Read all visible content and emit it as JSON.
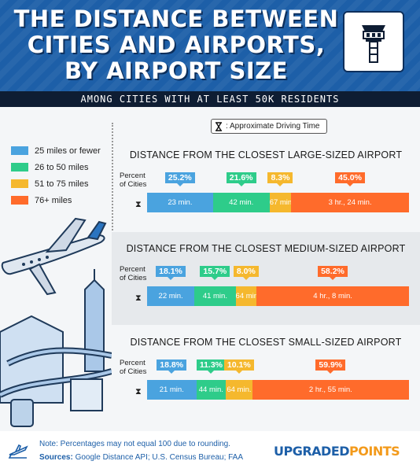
{
  "header": {
    "title_lines": [
      "THE DISTANCE BETWEEN",
      "CITIES AND AIRPORTS,",
      "BY AIRPORT SIZE"
    ],
    "subtitle": "AMONG CITIES WITH AT LEAST 50K RESIDENTS",
    "icon": "control-tower-icon"
  },
  "legend_note": {
    "icon": "hourglass-icon",
    "text": ": Approximate Driving Time"
  },
  "colors": {
    "c1": "#4aa3df",
    "c2": "#2ecc8a",
    "c3": "#f5b82e",
    "c4": "#ff6b2b",
    "header": "#1d5fa8"
  },
  "legend": [
    {
      "label": "25 miles or fewer",
      "color": "#4aa3df"
    },
    {
      "label": "26 to 50 miles",
      "color": "#2ecc8a"
    },
    {
      "label": "51 to 75 miles",
      "color": "#f5b82e"
    },
    {
      "label": "76+ miles",
      "color": "#ff6b2b"
    }
  ],
  "poc_label": "Percent of Cities",
  "chart_data": [
    {
      "type": "bar",
      "title": "DISTANCE FROM THE CLOSEST LARGE-SIZED AIRPORT",
      "categories": [
        "25 miles or fewer",
        "26 to 50 miles",
        "51 to 75 miles",
        "76+ miles"
      ],
      "values": [
        25.2,
        21.6,
        8.3,
        45.0
      ],
      "pct_labels": [
        "25.2%",
        "21.6%",
        "8.3%",
        "45.0%"
      ],
      "times": [
        "23 min.",
        "42 min.",
        "67 min.",
        "3 hr., 24 min."
      ]
    },
    {
      "type": "bar",
      "title": "DISTANCE FROM THE CLOSEST MEDIUM-SIZED AIRPORT",
      "categories": [
        "25 miles or fewer",
        "26 to 50 miles",
        "51 to 75 miles",
        "76+ miles"
      ],
      "values": [
        18.1,
        15.7,
        8.0,
        58.2
      ],
      "pct_labels": [
        "18.1%",
        "15.7%",
        "8.0%",
        "58.2%"
      ],
      "times": [
        "22 min.",
        "41 min.",
        "64 min.",
        "4 hr., 8 min."
      ]
    },
    {
      "type": "bar",
      "title": "DISTANCE FROM THE CLOSEST SMALL-SIZED AIRPORT",
      "categories": [
        "25 miles or fewer",
        "26 to 50 miles",
        "51 to 75 miles",
        "76+ miles"
      ],
      "values": [
        18.8,
        11.3,
        10.1,
        59.9
      ],
      "pct_labels": [
        "18.8%",
        "11.3%",
        "10.1%",
        "59.9%"
      ],
      "times": [
        "21 min.",
        "44 min.",
        "64 min.",
        "2 hr., 55 min."
      ]
    }
  ],
  "footer": {
    "note": "Note: Percentages may not equal 100 due to rounding.",
    "sources_label": "Sources:",
    "sources": "Google Distance API; U.S. Census Bureau; FAA",
    "brand_a": "UPGRADED",
    "brand_b": "POINTS"
  }
}
